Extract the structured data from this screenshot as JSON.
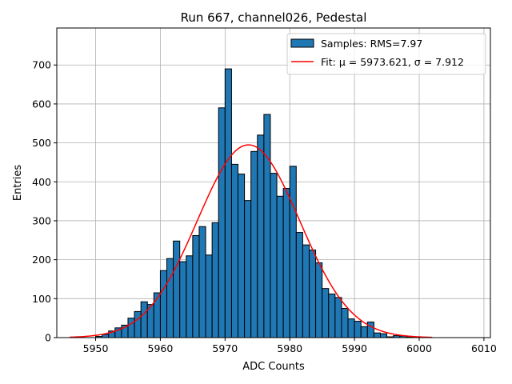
{
  "chart_data": {
    "type": "bar",
    "title": "Run 667, channel026, Pedestal",
    "xlabel": "ADC Counts",
    "ylabel": "Entries",
    "xlim": [
      5944,
      6011
    ],
    "ylim": [
      0,
      795
    ],
    "xticks": [
      5950,
      5960,
      5970,
      5980,
      5990,
      6000,
      6010
    ],
    "yticks": [
      0,
      100,
      200,
      300,
      400,
      500,
      600,
      700
    ],
    "grid": true,
    "legend_position": "top-right",
    "colors": {
      "bar_fill": "#1f77b4",
      "bar_edge": "#000000",
      "fit_line": "#ff0000",
      "grid": "#b0b0b0"
    },
    "histogram": {
      "name": "Samples: RMS=7.97",
      "bin_width": 1,
      "bin_start": [
        5950,
        5951,
        5952,
        5953,
        5954,
        5955,
        5956,
        5957,
        5958,
        5959,
        5960,
        5961,
        5962,
        5963,
        5964,
        5965,
        5966,
        5967,
        5968,
        5969,
        5970,
        5971,
        5972,
        5973,
        5974,
        5975,
        5976,
        5977,
        5978,
        5979,
        5980,
        5981,
        5982,
        5983,
        5984,
        5985,
        5986,
        5987,
        5988,
        5989,
        5990,
        5991,
        5992,
        5993,
        5994,
        5995,
        5996,
        5997,
        5998
      ],
      "counts": [
        3,
        8,
        17,
        25,
        32,
        50,
        67,
        92,
        85,
        115,
        172,
        203,
        248,
        195,
        210,
        262,
        285,
        212,
        295,
        590,
        690,
        445,
        420,
        352,
        478,
        520,
        573,
        422,
        363,
        383,
        440,
        270,
        238,
        225,
        192,
        126,
        112,
        103,
        75,
        48,
        42,
        28,
        40,
        12,
        10,
        2,
        5,
        4,
        2
      ]
    },
    "fit": {
      "name": "Fit: μ = 5973.621, σ = 7.912",
      "mu": 5973.621,
      "sigma": 7.912,
      "amplitude": 495,
      "x_range": [
        5946,
        6002
      ]
    }
  }
}
